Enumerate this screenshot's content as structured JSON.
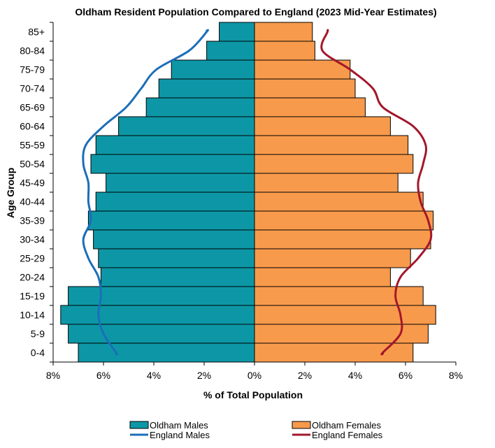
{
  "chart_data": {
    "type": "population-pyramid",
    "title": "Oldham Resident Population Compared to England (2023 Mid-Year Estimates)",
    "xlabel": "% of Total Population",
    "ylabel": "Age Group",
    "xlim": [
      -8,
      8
    ],
    "xticks": [
      -8,
      -6,
      -4,
      -2,
      0,
      2,
      4,
      6,
      8
    ],
    "xtick_labels": [
      "8%",
      "6%",
      "4%",
      "2%",
      "0%",
      "2%",
      "4%",
      "6%",
      "8%"
    ],
    "categories": [
      "0-4",
      "5-9",
      "10-14",
      "15-19",
      "20-24",
      "25-29",
      "30-34",
      "35-39",
      "40-44",
      "45-49",
      "50-54",
      "55-59",
      "60-64",
      "65-69",
      "70-74",
      "75-79",
      "80-84",
      "85+"
    ],
    "series": [
      {
        "name": "Oldham Males",
        "kind": "bar",
        "side": "left",
        "color": "#0d97a6",
        "values": [
          7.0,
          7.4,
          7.7,
          7.4,
          6.1,
          6.2,
          6.4,
          6.6,
          6.3,
          5.9,
          6.5,
          6.3,
          5.4,
          4.3,
          3.8,
          3.3,
          1.9,
          1.4
        ]
      },
      {
        "name": "Oldham Females",
        "kind": "bar",
        "side": "right",
        "color": "#f89a4c",
        "values": [
          6.3,
          6.9,
          7.2,
          6.7,
          5.4,
          6.2,
          7.0,
          7.1,
          6.7,
          5.7,
          6.3,
          6.1,
          5.4,
          4.4,
          4.0,
          3.8,
          2.4,
          2.3
        ]
      },
      {
        "name": "England Males",
        "kind": "line",
        "side": "left",
        "color": "#1b6eb8",
        "values": [
          5.5,
          6.0,
          6.2,
          6.1,
          6.2,
          6.6,
          6.8,
          6.5,
          6.6,
          6.6,
          6.8,
          6.7,
          6.0,
          5.1,
          4.5,
          3.9,
          2.6,
          1.9
        ]
      },
      {
        "name": "England Females",
        "kind": "line",
        "side": "right",
        "color": "#a3172b",
        "values": [
          5.1,
          5.8,
          5.8,
          5.6,
          5.8,
          6.5,
          7.0,
          6.9,
          6.6,
          6.5,
          6.7,
          6.8,
          6.3,
          5.1,
          4.7,
          3.8,
          2.7,
          2.9
        ]
      }
    ],
    "legend": {
      "position": "bottom",
      "columns": 2
    },
    "grid": false
  }
}
